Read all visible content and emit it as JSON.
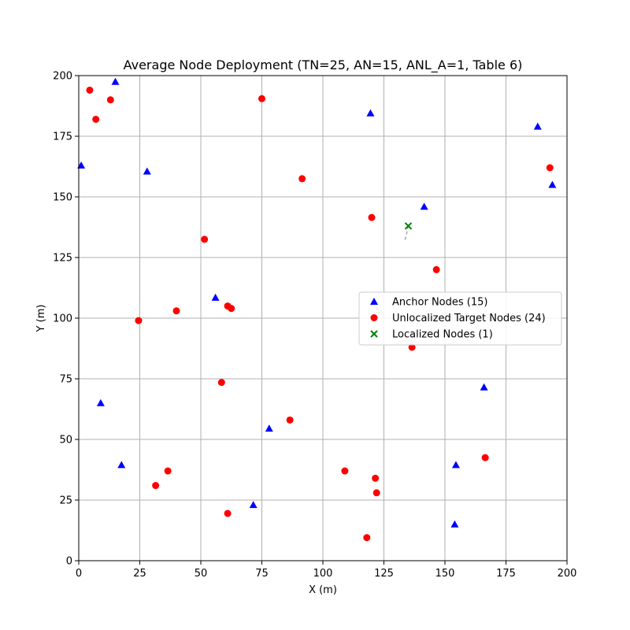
{
  "chart_data": {
    "type": "scatter",
    "title": "Average Node Deployment (TN=25, AN=15, ANL_A=1, Table 6)",
    "xlabel": "X (m)",
    "ylabel": "Y (m)",
    "xlim": [
      0,
      200
    ],
    "ylim": [
      0,
      200
    ],
    "xticks": [
      "0",
      "25",
      "50",
      "75",
      "100",
      "125",
      "150",
      "175",
      "200"
    ],
    "yticks": [
      "0",
      "25",
      "50",
      "75",
      "100",
      "125",
      "150",
      "175",
      "200"
    ],
    "grid": true,
    "legend_position": "center-right",
    "series": [
      {
        "name": "Anchor Nodes (15)",
        "marker": "triangle",
        "color": "#0000ff",
        "points": [
          [
            15,
            197.5
          ],
          [
            1,
            163
          ],
          [
            28,
            160.5
          ],
          [
            119.5,
            184.5
          ],
          [
            188,
            179
          ],
          [
            194,
            155
          ],
          [
            141.5,
            146
          ],
          [
            56,
            108.5
          ],
          [
            9,
            65
          ],
          [
            17.5,
            39.5
          ],
          [
            78,
            54.5
          ],
          [
            71.5,
            23
          ],
          [
            166,
            71.5
          ],
          [
            154.5,
            39.5
          ],
          [
            154,
            15
          ]
        ]
      },
      {
        "name": "Unlocalized Target Nodes (24)",
        "marker": "circle",
        "color": "#ff0000",
        "points": [
          [
            4.5,
            194
          ],
          [
            13,
            190
          ],
          [
            7,
            182
          ],
          [
            75,
            190.5
          ],
          [
            91.5,
            157.5
          ],
          [
            120,
            141.5
          ],
          [
            193,
            162
          ],
          [
            51.5,
            132.5
          ],
          [
            146.5,
            120
          ],
          [
            24.5,
            99
          ],
          [
            40,
            103
          ],
          [
            61,
            105
          ],
          [
            62.5,
            104
          ],
          [
            136.5,
            88
          ],
          [
            58.5,
            73.5
          ],
          [
            86.5,
            58
          ],
          [
            36.5,
            37
          ],
          [
            31.5,
            31
          ],
          [
            61,
            19.5
          ],
          [
            109,
            37
          ],
          [
            121.5,
            34
          ],
          [
            122,
            28
          ],
          [
            118,
            9.5
          ],
          [
            166.5,
            42.5
          ]
        ]
      },
      {
        "name": "Localized Nodes (1)",
        "marker": "x",
        "color": "#008000",
        "points": [
          [
            135,
            138
          ]
        ]
      }
    ],
    "error_lines": [
      {
        "from": [
          135,
          138
        ],
        "to": [
          133.5,
          131.5
        ],
        "color": "#aaaaaa",
        "style": "dashed"
      }
    ]
  }
}
